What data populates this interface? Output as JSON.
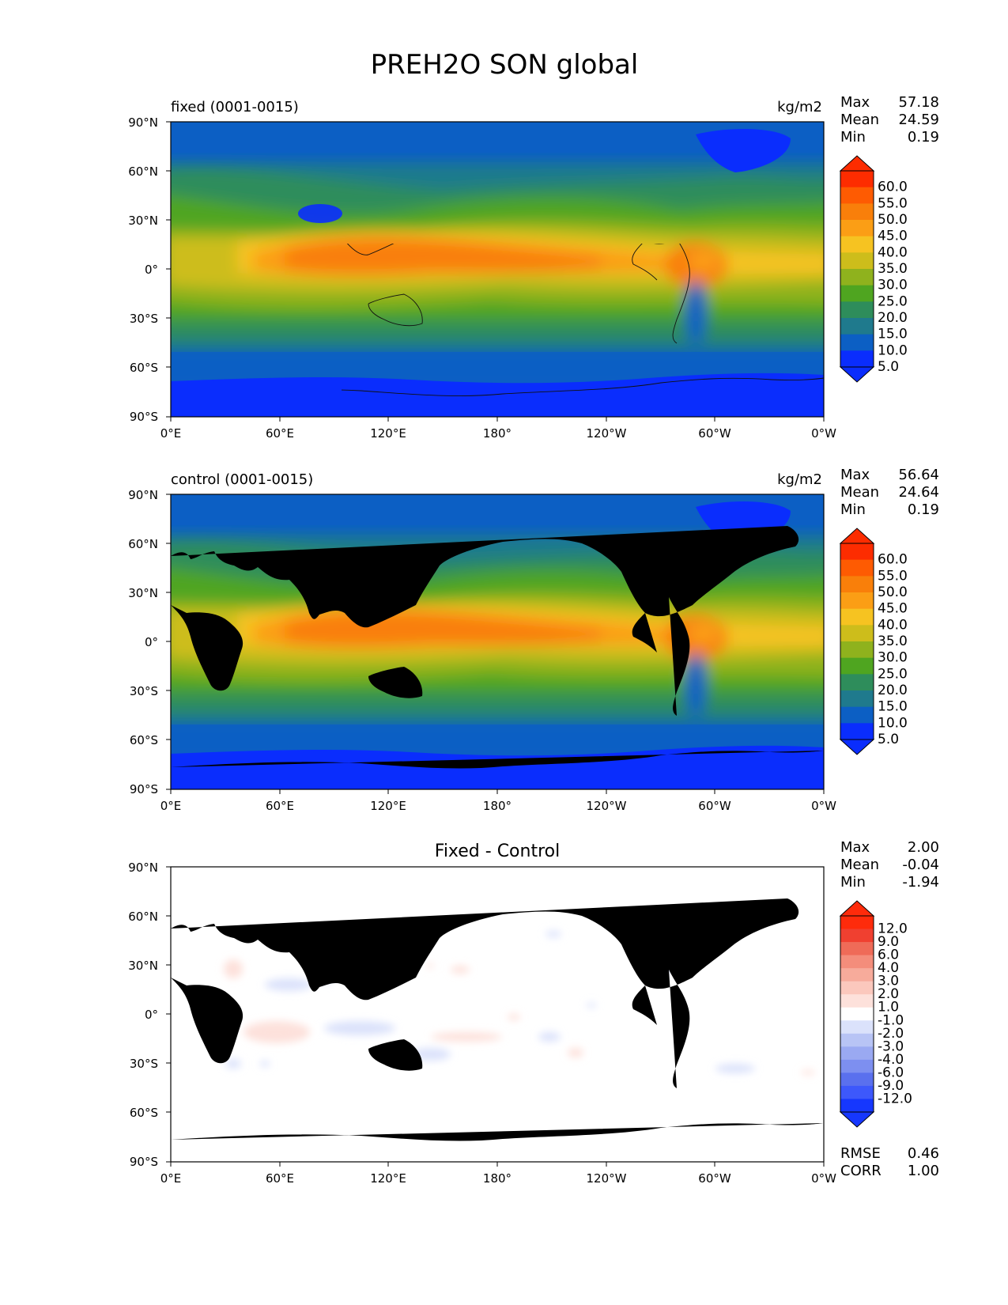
{
  "title": "PREH2O SON global",
  "xticks": [
    "0°E",
    "60°E",
    "120°E",
    "180°",
    "120°W",
    "60°W",
    "0°W"
  ],
  "yticks": [
    "90°N",
    "60°N",
    "30°N",
    "0°",
    "30°S",
    "60°S",
    "90°S"
  ],
  "colors": {
    "field": [
      "#0a2dfd",
      "#0c5fc4",
      "#1f7a8d",
      "#2e8d5b",
      "#4fa520",
      "#8fb21d",
      "#cdbd1b",
      "#f6c321",
      "#fb9e15",
      "#f97f0a",
      "#fe5b02",
      "#fd2c00"
    ],
    "diff": [
      "#1637fe",
      "#3d58fb",
      "#5a70ee",
      "#7d8ff0",
      "#9aa9f2",
      "#b8c4f5",
      "#dbe2fb",
      "#ffffff",
      "#fde1db",
      "#fbc8bd",
      "#f7ab9b",
      "#f48d7b",
      "#ef6b58",
      "#f04030",
      "#fe2b0b"
    ]
  },
  "panels": [
    {
      "id": "fixed",
      "left_label": "fixed (0001-0015)",
      "right_label": "kg/m2",
      "stats": [
        {
          "k": "Max",
          "v": "57.18"
        },
        {
          "k": "Mean",
          "v": "24.59"
        },
        {
          "k": "Min",
          "v": "0.19"
        }
      ],
      "cbar_ticks": [
        "60.0",
        "55.0",
        "50.0",
        "45.0",
        "40.0",
        "35.0",
        "30.0",
        "25.0",
        "20.0",
        "15.0",
        "10.0",
        "5.0"
      ]
    },
    {
      "id": "control",
      "left_label": "control (0001-0015)",
      "right_label": "kg/m2",
      "stats": [
        {
          "k": "Max",
          "v": "56.64"
        },
        {
          "k": "Mean",
          "v": "24.64"
        },
        {
          "k": "Min",
          "v": "0.19"
        }
      ],
      "cbar_ticks": [
        "60.0",
        "55.0",
        "50.0",
        "45.0",
        "40.0",
        "35.0",
        "30.0",
        "25.0",
        "20.0",
        "15.0",
        "10.0",
        "5.0"
      ]
    },
    {
      "id": "diff",
      "center_title": "Fixed - Control",
      "stats": [
        {
          "k": "Max",
          "v": "2.00"
        },
        {
          "k": "Mean",
          "v": "-0.04"
        },
        {
          "k": "Min",
          "v": "-1.94"
        }
      ],
      "cbar_ticks": [
        "12.0",
        "9.0",
        "6.0",
        "4.0",
        "3.0",
        "2.0",
        "1.0",
        "-1.0",
        "-2.0",
        "-3.0",
        "-4.0",
        "-6.0",
        "-9.0",
        "-12.0"
      ],
      "footer": [
        {
          "k": "RMSE",
          "v": "0.46"
        },
        {
          "k": "CORR",
          "v": "1.00"
        }
      ]
    }
  ]
}
